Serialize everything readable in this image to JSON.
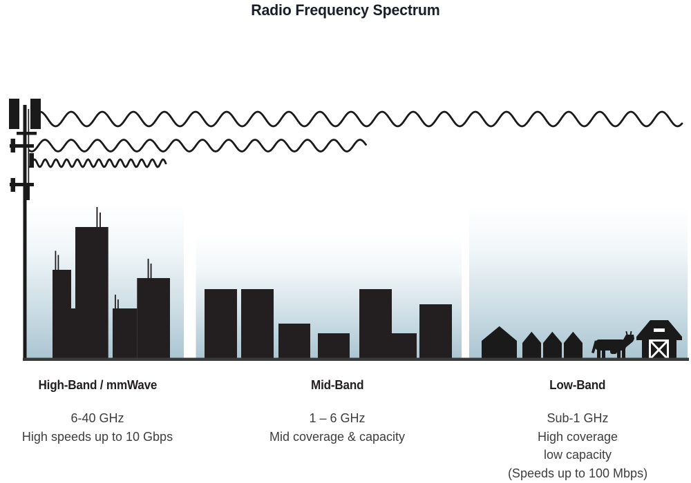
{
  "title": "Radio Frequency Spectrum",
  "bands": [
    {
      "heading": "High-Band / mmWave",
      "lines": [
        "6-40 GHz",
        "High speeds up to 10 Gbps"
      ]
    },
    {
      "heading": "Mid-Band",
      "lines": [
        "1 – 6 GHz",
        "Mid coverage & capacity"
      ]
    },
    {
      "heading": "Low-Band",
      "lines": [
        "Sub-1 GHz",
        "High coverage",
        "low capacity",
        "(Speeds up to 100 Mbps)"
      ]
    }
  ],
  "icons": {
    "tower": "cell-tower-icon",
    "long_wave": "long-wavelength-wave-icon",
    "medium_wave": "medium-wavelength-wave-icon",
    "short_wave": "short-wavelength-wave-icon",
    "high_band_scene": "skyscraper-skyline-icon",
    "mid_band_scene": "midrise-skyline-icon",
    "low_band_scene": "rural-scene-icon",
    "house": "house-icon",
    "cow": "cow-icon",
    "barn": "barn-icon"
  },
  "colors": {
    "silhouette": "#231f20",
    "ink": "#1a1a1a",
    "ground": "#3a3a3a",
    "sky_top": "#ffffff",
    "sky_bottom": "#abc6d2",
    "title_text": "#1a1e28",
    "heading_text": "#231f20",
    "body_text": "#3d3d3d"
  }
}
